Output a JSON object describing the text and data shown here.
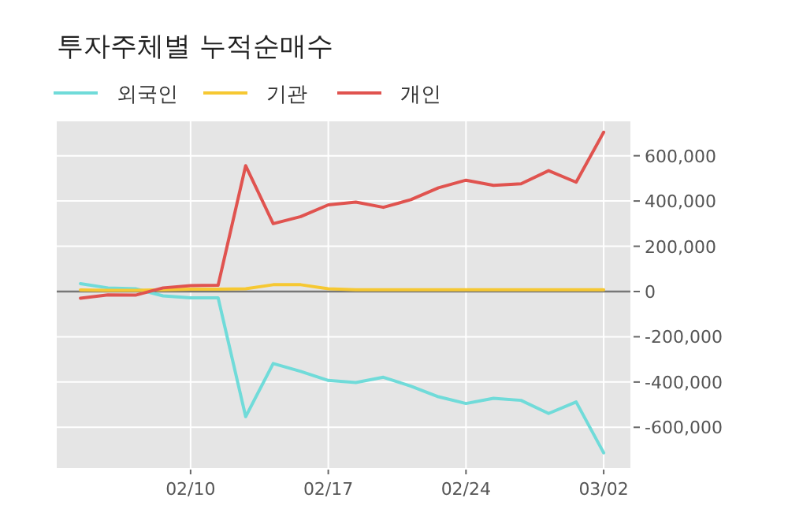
{
  "chart_data": {
    "type": "line",
    "title": "투자주체별 누적순매수",
    "categories": [
      null,
      null,
      null,
      null,
      "02/10",
      null,
      null,
      null,
      null,
      "02/17",
      null,
      null,
      null,
      null,
      "02/24",
      null,
      null,
      null,
      null,
      "03/02"
    ],
    "series": [
      {
        "name": "외국인",
        "color": "#70dbd9",
        "values": [
          35000,
          16000,
          12000,
          -19000,
          -28000,
          -28000,
          -553000,
          -318000,
          -353000,
          -393000,
          -402000,
          -379000,
          -418000,
          -465000,
          -495000,
          -472000,
          -481000,
          -539000,
          -488000,
          -713000
        ]
      },
      {
        "name": "기관",
        "color": "#f6c832",
        "values": [
          7000,
          5000,
          5000,
          8000,
          10000,
          10000,
          12000,
          30000,
          30000,
          12000,
          8000,
          8000,
          8000,
          8000,
          8000,
          8000,
          8000,
          8000,
          8000,
          8000
        ]
      },
      {
        "name": "개인",
        "color": "#e0534f",
        "values": [
          -30000,
          -15000,
          -16000,
          16000,
          26000,
          28000,
          556000,
          300000,
          331000,
          383000,
          395000,
          372000,
          406000,
          458000,
          492000,
          469000,
          476000,
          534000,
          483000,
          704000
        ]
      }
    ],
    "ylim": [
      -780000,
      752000
    ],
    "yticks": [
      {
        "value": -600000,
        "label": "-600,000"
      },
      {
        "value": -400000,
        "label": "-400,000"
      },
      {
        "value": -200000,
        "label": "-200,000"
      },
      0,
      {
        "value": 200000,
        "label": "200,000"
      },
      {
        "value": 400000,
        "label": "400,000"
      },
      {
        "value": 600000,
        "label": "600,000"
      }
    ],
    "ref_lines": [
      {
        "axis": "y",
        "value": 0,
        "color": "#777777"
      }
    ],
    "grid": true,
    "legend": "top left"
  }
}
